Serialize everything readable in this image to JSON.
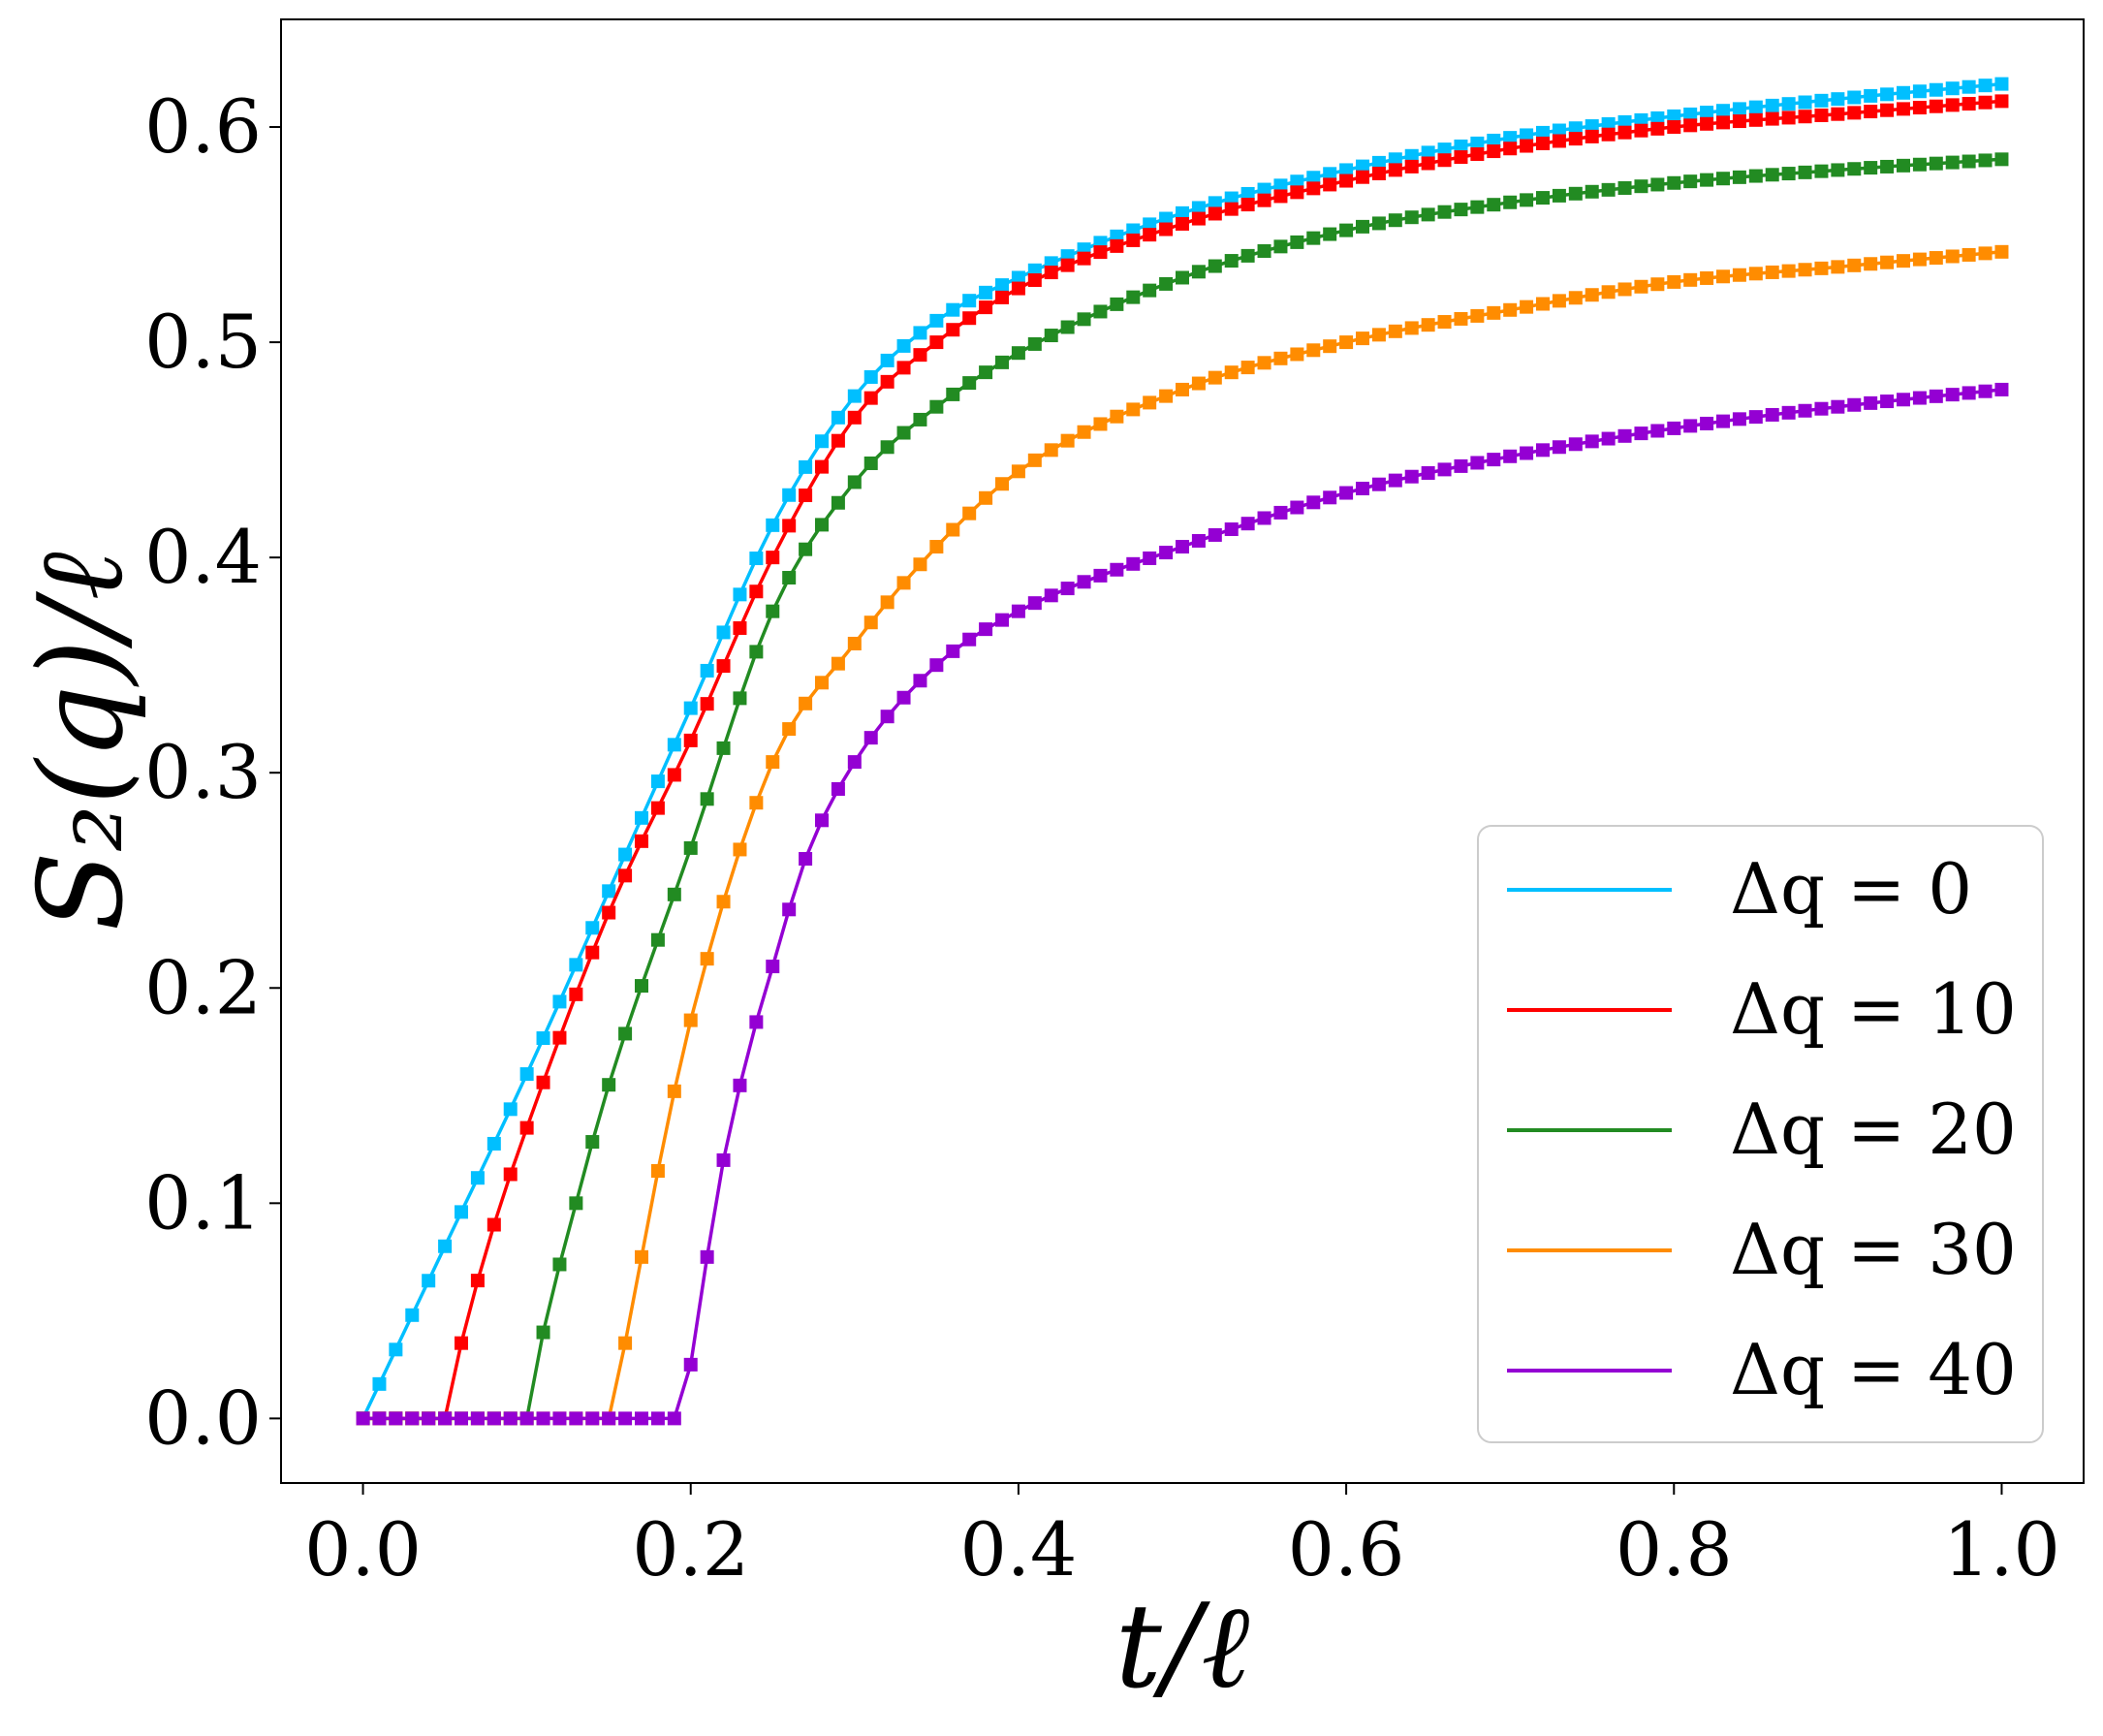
{
  "chart_data": {
    "type": "line",
    "title": "",
    "xlabel": "t/ℓ",
    "ylabel": "S₂(q)/ℓ",
    "xlim": [
      -0.05,
      1.05
    ],
    "ylim": [
      -0.03,
      0.65
    ],
    "x_ticks": [
      "0.0",
      "0.2",
      "0.4",
      "0.6",
      "0.8",
      "1.0"
    ],
    "y_ticks": [
      "0.0",
      "0.1",
      "0.2",
      "0.3",
      "0.4",
      "0.5",
      "0.6"
    ],
    "grid": false,
    "legend_position": "lower-right",
    "markers": "square",
    "series": [
      {
        "name": "Δq = 0",
        "color": "#00bfff",
        "t0": 0.0,
        "x": [
          0.0,
          0.05,
          0.1,
          0.15,
          0.2,
          0.25,
          0.3,
          0.35,
          0.4,
          0.5,
          0.6,
          0.7,
          0.8,
          0.9,
          1.0
        ],
        "y": [
          0.0,
          0.08,
          0.16,
          0.245,
          0.33,
          0.415,
          0.475,
          0.51,
          0.53,
          0.56,
          0.58,
          0.595,
          0.605,
          0.613,
          0.62
        ]
      },
      {
        "name": "Δq = 10",
        "color": "#ff0000",
        "t0": 0.05,
        "x": [
          0.05,
          0.06,
          0.08,
          0.1,
          0.15,
          0.2,
          0.25,
          0.3,
          0.35,
          0.4,
          0.5,
          0.6,
          0.7,
          0.8,
          0.9,
          1.0
        ],
        "y": [
          0.0,
          0.035,
          0.09,
          0.135,
          0.235,
          0.315,
          0.4,
          0.465,
          0.5,
          0.525,
          0.555,
          0.575,
          0.59,
          0.6,
          0.606,
          0.612
        ]
      },
      {
        "name": "Δq = 20",
        "color": "#228b22",
        "t0": 0.1,
        "x": [
          0.1,
          0.11,
          0.13,
          0.15,
          0.2,
          0.25,
          0.3,
          0.35,
          0.4,
          0.5,
          0.6,
          0.7,
          0.8,
          0.9,
          1.0
        ],
        "y": [
          0.0,
          0.04,
          0.1,
          0.155,
          0.265,
          0.375,
          0.435,
          0.47,
          0.495,
          0.53,
          0.552,
          0.565,
          0.574,
          0.58,
          0.585
        ]
      },
      {
        "name": "Δq = 30",
        "color": "#ff8c00",
        "t0": 0.15,
        "x": [
          0.15,
          0.16,
          0.18,
          0.2,
          0.25,
          0.3,
          0.35,
          0.4,
          0.5,
          0.6,
          0.7,
          0.8,
          0.9,
          1.0
        ],
        "y": [
          0.0,
          0.035,
          0.115,
          0.185,
          0.305,
          0.36,
          0.405,
          0.44,
          0.478,
          0.5,
          0.515,
          0.528,
          0.535,
          0.542
        ]
      },
      {
        "name": "Δq = 40",
        "color": "#9400d3",
        "t0": 0.195,
        "x": [
          0.195,
          0.2,
          0.21,
          0.22,
          0.235,
          0.25,
          0.27,
          0.3,
          0.35,
          0.4,
          0.5,
          0.6,
          0.7,
          0.8,
          0.9,
          1.0
        ],
        "y": [
          0.0,
          0.025,
          0.075,
          0.12,
          0.17,
          0.21,
          0.26,
          0.305,
          0.35,
          0.375,
          0.405,
          0.43,
          0.447,
          0.46,
          0.47,
          0.478
        ]
      }
    ]
  }
}
